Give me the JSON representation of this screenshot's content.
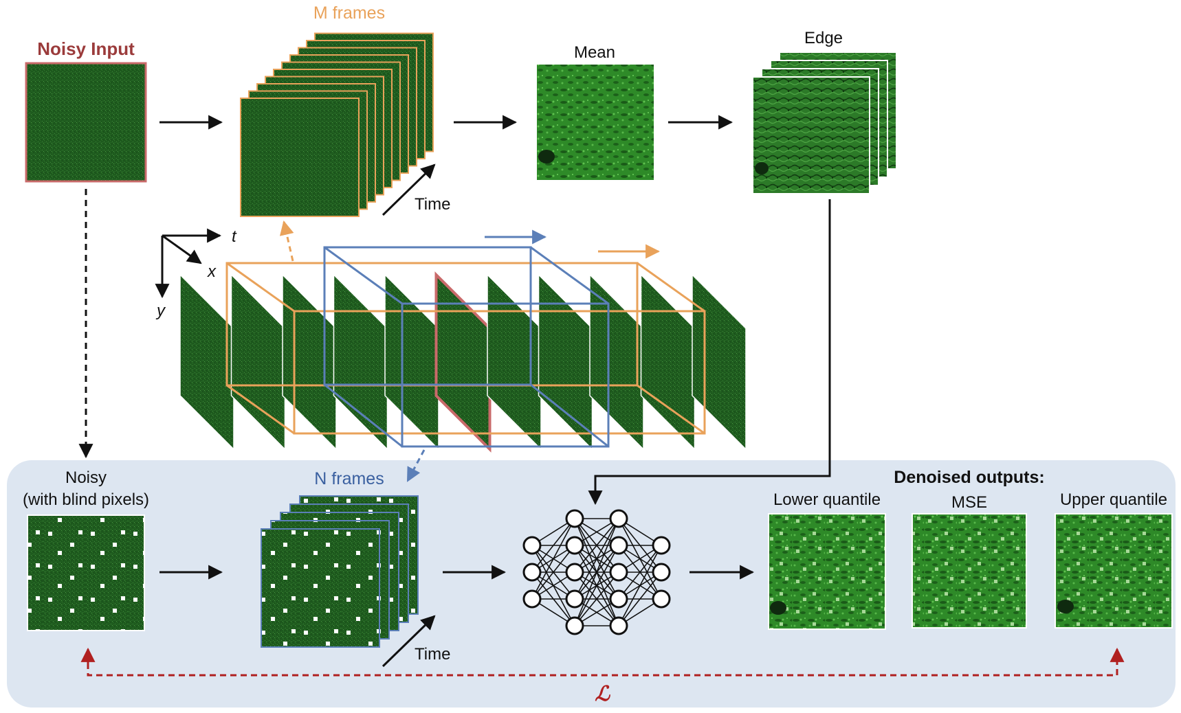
{
  "labels": {
    "noisy_input": "Noisy Input",
    "m_frames": "M frames",
    "time_top": "Time",
    "mean": "Mean",
    "edge": "Edge",
    "axis_t": "t",
    "axis_x": "x",
    "axis_y": "y",
    "noisy_line1": "Noisy",
    "noisy_line2": "(with blind pixels)",
    "n_frames": "N frames",
    "time_bottom": "Time",
    "denoised_outputs": "Denoised outputs:",
    "lower_quantile": "Lower quantile",
    "mse": "MSE",
    "upper_quantile": "Upper quantile",
    "loss": "ℒ"
  },
  "colors": {
    "noisy_input_red": "#9b3b3b",
    "orange": "#e9a25a",
    "blue": "#5b7fb8",
    "loss_red": "#b02020",
    "panel_bg": "#dde6f1",
    "frame_green": "#1e5a1e"
  }
}
